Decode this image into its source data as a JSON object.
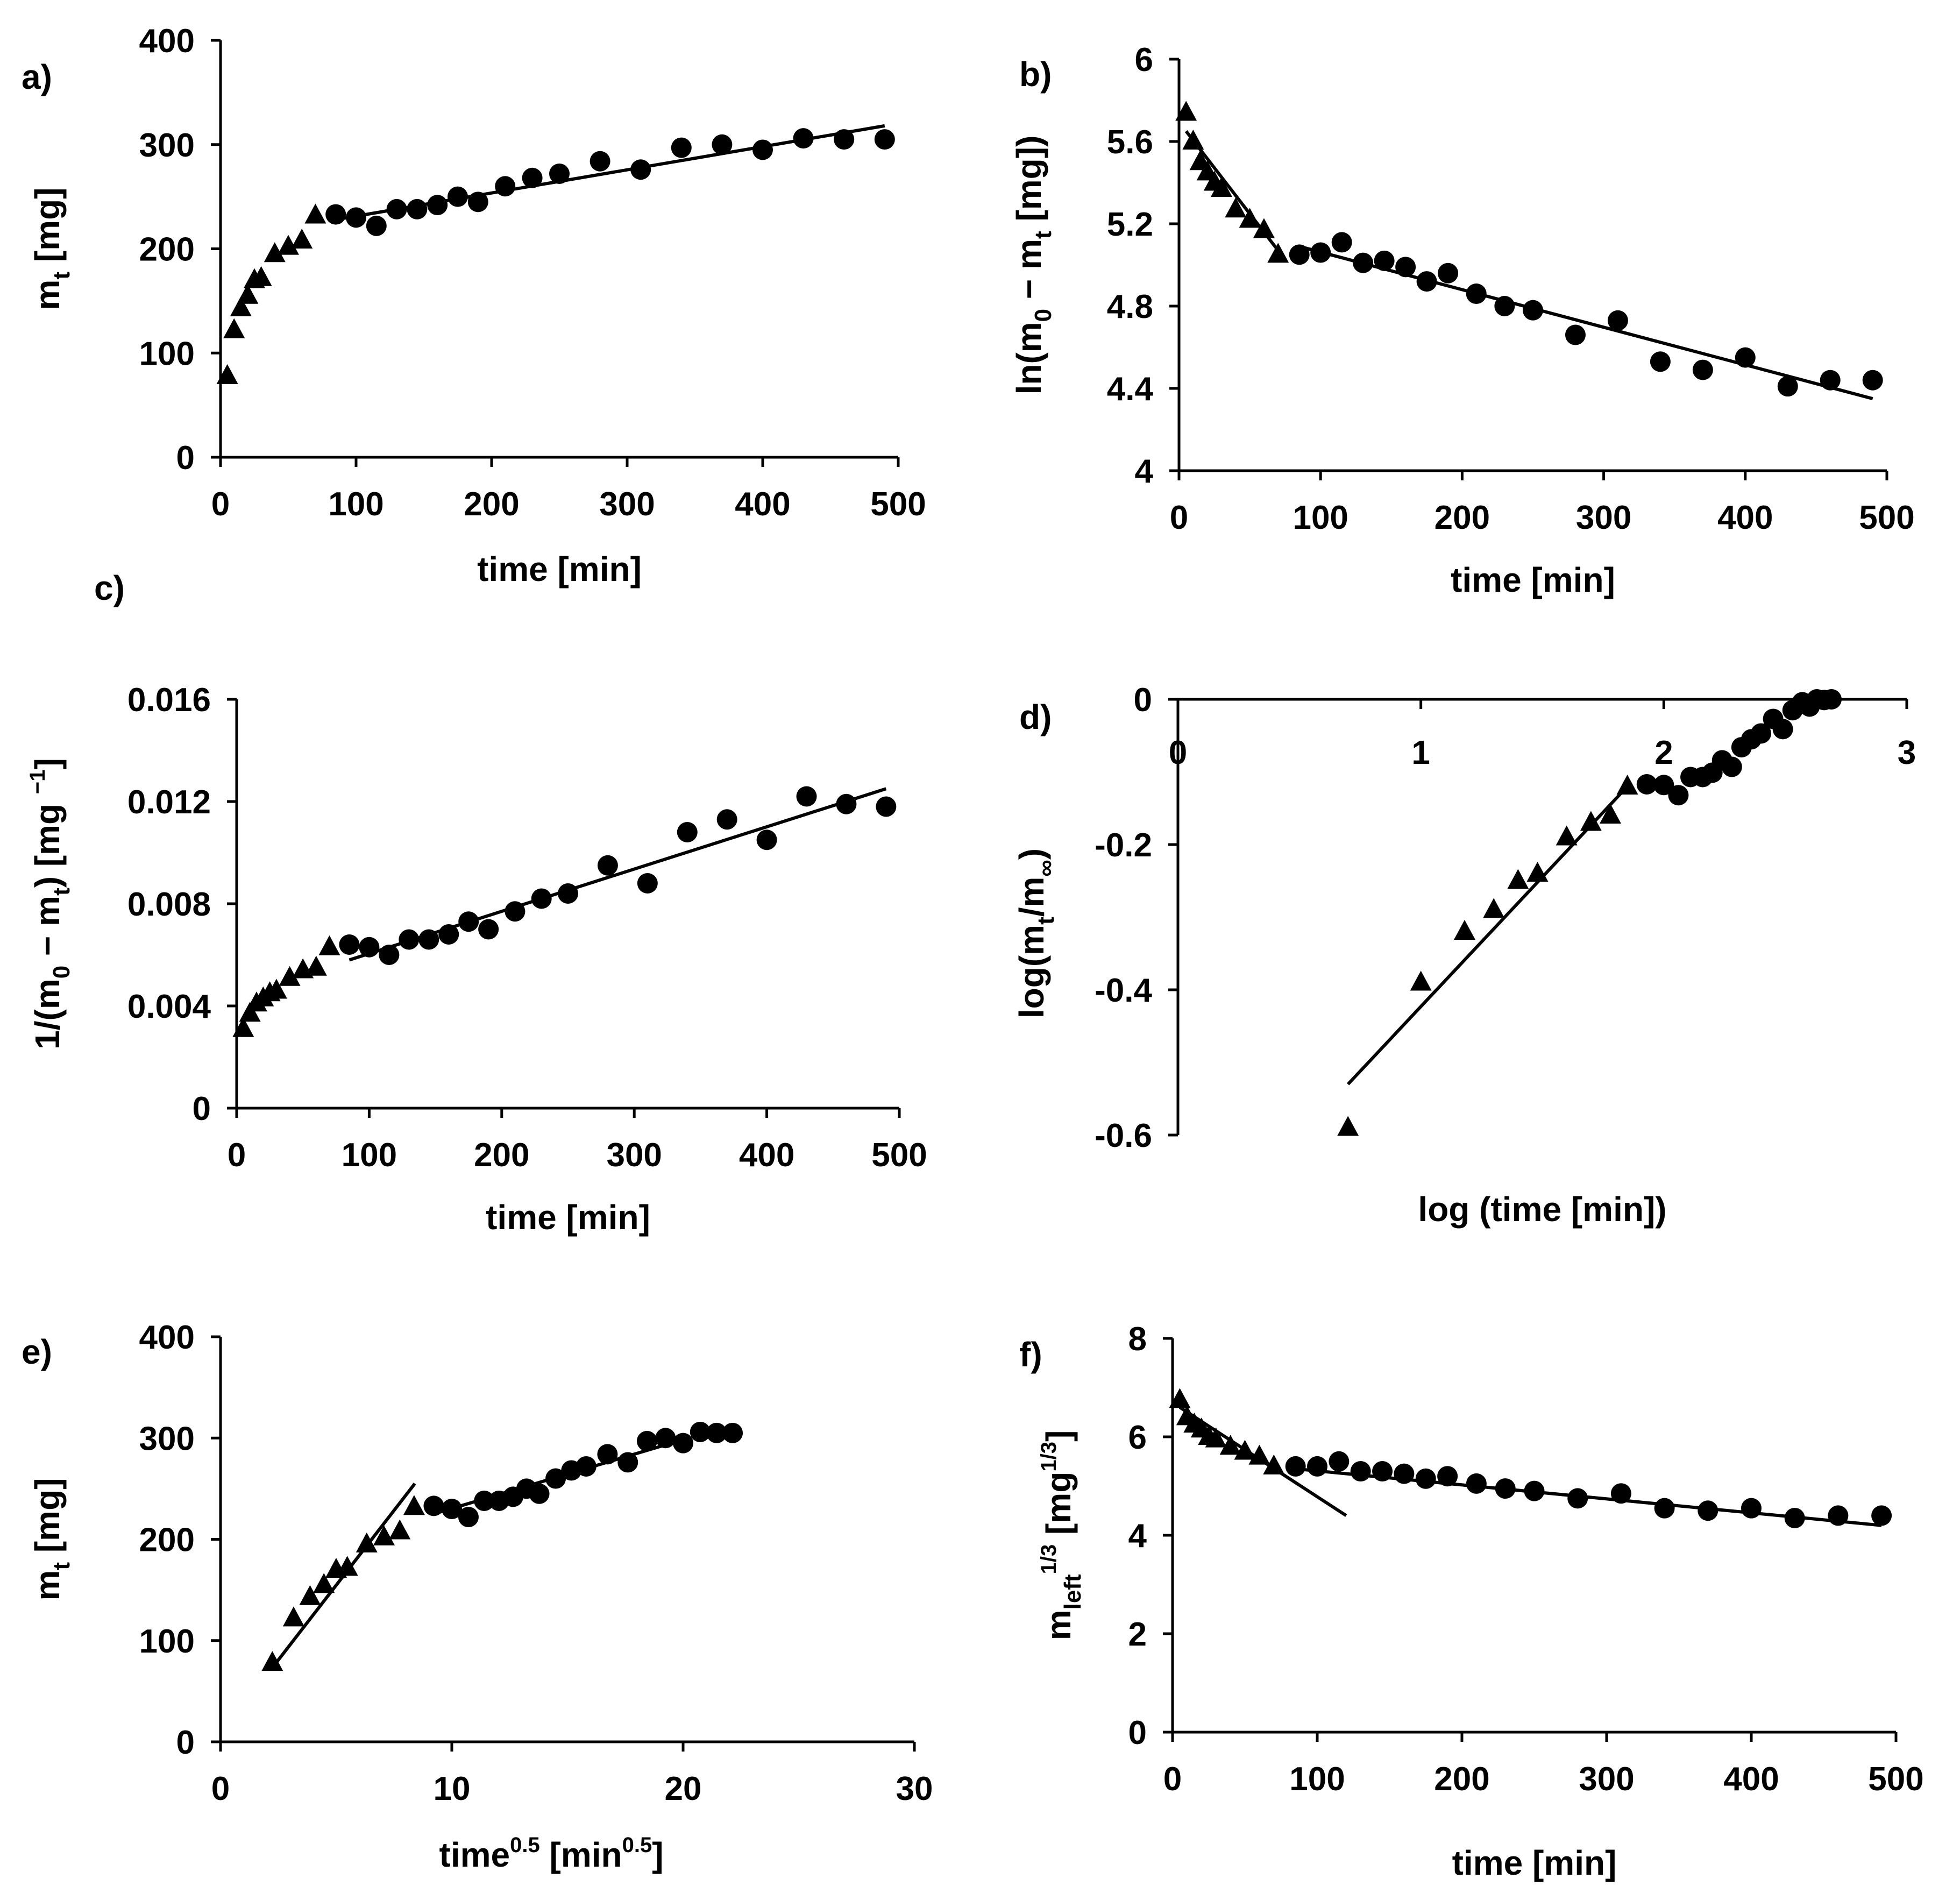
{
  "figure": {
    "background": "#ffffff",
    "ink": "#000000"
  },
  "chart_data": [
    {
      "id": "a",
      "type": "scatter",
      "panel_label": "a)",
      "xlabel": "time [min]",
      "ylabel": "m",
      "ylabel_parts": [
        {
          "t": "m"
        },
        {
          "t": "t",
          "sub": true
        },
        {
          "t": " [mg]"
        }
      ],
      "xlim": [
        0,
        500
      ],
      "ylim": [
        0,
        400
      ],
      "xticks": [
        0,
        100,
        200,
        300,
        400,
        500
      ],
      "xtick_labels": [
        "0",
        "100",
        "200",
        "300",
        "400",
        "500"
      ],
      "yticks": [
        0,
        100,
        200,
        300,
        400
      ],
      "ytick_labels": [
        "0",
        "100",
        "200",
        "300",
        "400"
      ],
      "series": [
        {
          "name": "triangles",
          "marker": "triangle",
          "x": [
            5,
            10,
            15,
            20,
            25,
            30,
            40,
            50,
            60,
            70
          ],
          "y": [
            78,
            122,
            143,
            155,
            170,
            172,
            195,
            202,
            208,
            232
          ]
        },
        {
          "name": "circles",
          "marker": "circle",
          "x": [
            85,
            100,
            115,
            130,
            145,
            160,
            175,
            190,
            210,
            230,
            250,
            280,
            310,
            340,
            370,
            400,
            430,
            460,
            490
          ],
          "y": [
            233,
            230,
            222,
            238,
            238,
            242,
            250,
            245,
            260,
            268,
            272,
            284,
            276,
            297,
            300,
            295,
            306,
            305,
            305
          ]
        }
      ],
      "fits": [
        {
          "x": [
            85,
            490
          ],
          "y": [
            228,
            318
          ]
        }
      ]
    },
    {
      "id": "b",
      "type": "scatter",
      "panel_label": "b)",
      "xlabel": "time [min]",
      "ylabel": "ln(m0 − mt [mg])",
      "ylabel_parts": [
        {
          "t": "ln(m"
        },
        {
          "t": "0",
          "sub": true
        },
        {
          "t": " − m"
        },
        {
          "t": "t",
          "sub": true
        },
        {
          "t": " [mg])"
        }
      ],
      "xlim": [
        0,
        500
      ],
      "ylim": [
        4,
        6
      ],
      "xticks": [
        0,
        100,
        200,
        300,
        400,
        500
      ],
      "xtick_labels": [
        "0",
        "100",
        "200",
        "300",
        "400",
        "500"
      ],
      "yticks": [
        4,
        4.4,
        4.8,
        5.2,
        5.6,
        6
      ],
      "ytick_labels": [
        "4",
        "4.4",
        "4.8",
        "5.2",
        "5.6",
        "6"
      ],
      "series": [
        {
          "name": "triangles",
          "marker": "triangle",
          "x": [
            5,
            10,
            15,
            20,
            25,
            30,
            40,
            50,
            60,
            70
          ],
          "y": [
            5.74,
            5.6,
            5.5,
            5.45,
            5.4,
            5.37,
            5.27,
            5.22,
            5.17,
            5.05
          ]
        },
        {
          "name": "circles",
          "marker": "circle",
          "x": [
            85,
            100,
            115,
            130,
            145,
            160,
            175,
            190,
            210,
            230,
            250,
            280,
            310,
            340,
            370,
            400,
            430,
            460,
            490
          ],
          "y": [
            5.05,
            5.06,
            5.11,
            5.01,
            5.02,
            4.99,
            4.92,
            4.96,
            4.86,
            4.8,
            4.78,
            4.66,
            4.73,
            4.53,
            4.49,
            4.55,
            4.41,
            4.44,
            4.44
          ]
        }
      ],
      "fits": [
        {
          "x": [
            5,
            70
          ],
          "y": [
            5.65,
            5.07
          ]
        },
        {
          "x": [
            85,
            490
          ],
          "y": [
            5.09,
            4.35
          ]
        }
      ]
    },
    {
      "id": "c",
      "type": "scatter",
      "panel_label": "c)",
      "xlabel": "time [min]",
      "ylabel": "1/(m0 − mt) [mg −1]",
      "ylabel_parts": [
        {
          "t": "1/(m"
        },
        {
          "t": "0",
          "sub": true
        },
        {
          "t": " − m"
        },
        {
          "t": "t",
          "sub": true
        },
        {
          "t": ") [mg "
        },
        {
          "t": "−1",
          "sup": true
        },
        {
          "t": "]"
        }
      ],
      "xlim": [
        0,
        500
      ],
      "ylim": [
        0,
        0.016
      ],
      "xticks": [
        0,
        100,
        200,
        300,
        400,
        500
      ],
      "xtick_labels": [
        "0",
        "100",
        "200",
        "300",
        "400",
        "500"
      ],
      "yticks": [
        0,
        0.004,
        0.008,
        0.012,
        0.016
      ],
      "ytick_labels": [
        "0",
        "0.004",
        "0.008",
        "0.012",
        "0.016"
      ],
      "series": [
        {
          "name": "triangles",
          "marker": "triangle",
          "x": [
            5,
            10,
            15,
            20,
            25,
            30,
            40,
            50,
            60,
            70
          ],
          "y": [
            0.0031,
            0.0037,
            0.0041,
            0.0043,
            0.0045,
            0.0046,
            0.0051,
            0.0054,
            0.0055,
            0.0063
          ]
        },
        {
          "name": "circles",
          "marker": "circle",
          "x": [
            85,
            100,
            115,
            130,
            145,
            160,
            175,
            190,
            210,
            230,
            250,
            280,
            310,
            340,
            370,
            400,
            430,
            460,
            490
          ],
          "y": [
            0.0064,
            0.0063,
            0.006,
            0.0066,
            0.0066,
            0.0068,
            0.0073,
            0.007,
            0.0077,
            0.0082,
            0.0084,
            0.0095,
            0.0088,
            0.0108,
            0.0113,
            0.0105,
            0.0122,
            0.0119,
            0.0118
          ]
        }
      ],
      "fits": [
        {
          "x": [
            85,
            490
          ],
          "y": [
            0.0058,
            0.0125
          ]
        }
      ]
    },
    {
      "id": "d",
      "type": "scatter",
      "panel_label": "d)",
      "xlabel": "log (time [min])",
      "ylabel": "log(mt/m∞)",
      "ylabel_parts": [
        {
          "t": "log(m"
        },
        {
          "t": "t",
          "sub": true
        },
        {
          "t": "/m"
        },
        {
          "t": "∞",
          "sub": true
        },
        {
          "t": ")"
        }
      ],
      "xlim": [
        0,
        3
      ],
      "ylim": [
        -0.6,
        0
      ],
      "xticks": [
        0,
        1,
        2,
        3
      ],
      "xtick_labels": [
        "0",
        "1",
        "2",
        "3"
      ],
      "yticks": [
        -0.6,
        -0.4,
        -0.2,
        0
      ],
      "ytick_labels": [
        "-0.6",
        "-0.4",
        "-0.2",
        "0"
      ],
      "series": [
        {
          "name": "triangles",
          "marker": "triangle",
          "x": [
            0.7,
            1.0,
            1.18,
            1.3,
            1.4,
            1.48,
            1.6,
            1.7,
            1.78,
            1.85
          ],
          "y": [
            -0.59,
            -0.39,
            -0.32,
            -0.29,
            -0.25,
            -0.24,
            -0.19,
            -0.17,
            -0.16,
            -0.12
          ]
        },
        {
          "name": "circles",
          "marker": "circle",
          "x": [
            1.93,
            2.0,
            2.06,
            2.11,
            2.16,
            2.2,
            2.24,
            2.28,
            2.32,
            2.36,
            2.4,
            2.45,
            2.49,
            2.53,
            2.57,
            2.6,
            2.63,
            2.66,
            2.69
          ],
          "y": [
            -0.117,
            -0.118,
            -0.132,
            -0.107,
            -0.107,
            -0.101,
            -0.084,
            -0.093,
            -0.066,
            -0.055,
            -0.047,
            -0.027,
            -0.041,
            -0.015,
            -0.004,
            -0.01,
            0.0,
            -0.001,
            0.0
          ]
        }
      ],
      "fits": [
        {
          "x": [
            0.7,
            1.85
          ],
          "y": [
            -0.53,
            -0.12
          ]
        }
      ]
    },
    {
      "id": "e",
      "type": "scatter",
      "panel_label": "e)",
      "xlabel": "time0.5 [min0.5]",
      "ylabel": "m",
      "xlabel_parts": [
        {
          "t": "time"
        },
        {
          "t": "0.5",
          "sup": true
        },
        {
          "t": " [min"
        },
        {
          "t": "0.5",
          "sup": true
        },
        {
          "t": "]"
        }
      ],
      "ylabel_parts": [
        {
          "t": "m"
        },
        {
          "t": "t",
          "sub": true
        },
        {
          "t": " [mg]"
        }
      ],
      "xlim": [
        0,
        30
      ],
      "ylim": [
        0,
        400
      ],
      "xticks": [
        0,
        10,
        20,
        30
      ],
      "xtick_labels": [
        "0",
        "10",
        "20",
        "30"
      ],
      "yticks": [
        0,
        100,
        200,
        300,
        400
      ],
      "ytick_labels": [
        "0",
        "100",
        "200",
        "300",
        "400"
      ],
      "series": [
        {
          "name": "triangles",
          "marker": "triangle",
          "x": [
            2.24,
            3.16,
            3.87,
            4.47,
            5.0,
            5.48,
            6.32,
            7.07,
            7.75,
            8.37
          ],
          "y": [
            78,
            122,
            143,
            155,
            170,
            172,
            195,
            202,
            208,
            232
          ]
        },
        {
          "name": "circles",
          "marker": "circle",
          "x": [
            9.22,
            10.0,
            10.72,
            11.4,
            12.04,
            12.65,
            13.23,
            13.78,
            14.49,
            15.17,
            15.81,
            16.73,
            17.61,
            18.44,
            19.24,
            20.0,
            20.74,
            21.45,
            22.14
          ],
          "y": [
            233,
            230,
            222,
            238,
            238,
            242,
            250,
            245,
            260,
            268,
            272,
            284,
            276,
            297,
            300,
            295,
            306,
            305,
            305
          ]
        }
      ],
      "fits": [
        {
          "x": [
            2.2,
            8.4
          ],
          "y": [
            72,
            255
          ]
        },
        {
          "x": [
            9.2,
            19.5
          ],
          "y": [
            225,
            295
          ]
        }
      ]
    },
    {
      "id": "f",
      "type": "scatter",
      "panel_label": "f)",
      "xlabel": "time [min]",
      "ylabel": "mleft1/3 [mg1/3]",
      "ylabel_parts": [
        {
          "t": "m"
        },
        {
          "t": "left",
          "sub": true
        },
        {
          "t": "1/3",
          "sup": true
        },
        {
          "t": " [mg"
        },
        {
          "t": "1/3",
          "sup": true
        },
        {
          "t": "]"
        }
      ],
      "xlim": [
        0,
        500
      ],
      "ylim": [
        0,
        8
      ],
      "xticks": [
        0,
        100,
        200,
        300,
        400,
        500
      ],
      "xtick_labels": [
        "0",
        "100",
        "200",
        "300",
        "400",
        "500"
      ],
      "yticks": [
        0,
        2,
        4,
        6,
        8
      ],
      "ytick_labels": [
        "0",
        "2",
        "4",
        "6",
        "8"
      ],
      "series": [
        {
          "name": "triangles",
          "marker": "triangle",
          "x": [
            5,
            10,
            15,
            20,
            25,
            30,
            40,
            50,
            60,
            70
          ],
          "y": [
            6.75,
            6.4,
            6.25,
            6.15,
            6.0,
            5.95,
            5.8,
            5.7,
            5.6,
            5.4
          ]
        },
        {
          "name": "circles",
          "marker": "circle",
          "x": [
            85,
            100,
            115,
            130,
            145,
            160,
            175,
            190,
            210,
            230,
            250,
            280,
            310,
            340,
            370,
            400,
            430,
            460,
            490
          ],
          "y": [
            5.4,
            5.4,
            5.5,
            5.3,
            5.3,
            5.25,
            5.15,
            5.2,
            5.05,
            4.95,
            4.9,
            4.75,
            4.85,
            4.55,
            4.5,
            4.55,
            4.35,
            4.4,
            4.4
          ]
        }
      ],
      "fits": [
        {
          "x": [
            5,
            120
          ],
          "y": [
            6.6,
            4.4
          ]
        },
        {
          "x": [
            85,
            490
          ],
          "y": [
            5.35,
            4.2
          ]
        }
      ]
    }
  ]
}
